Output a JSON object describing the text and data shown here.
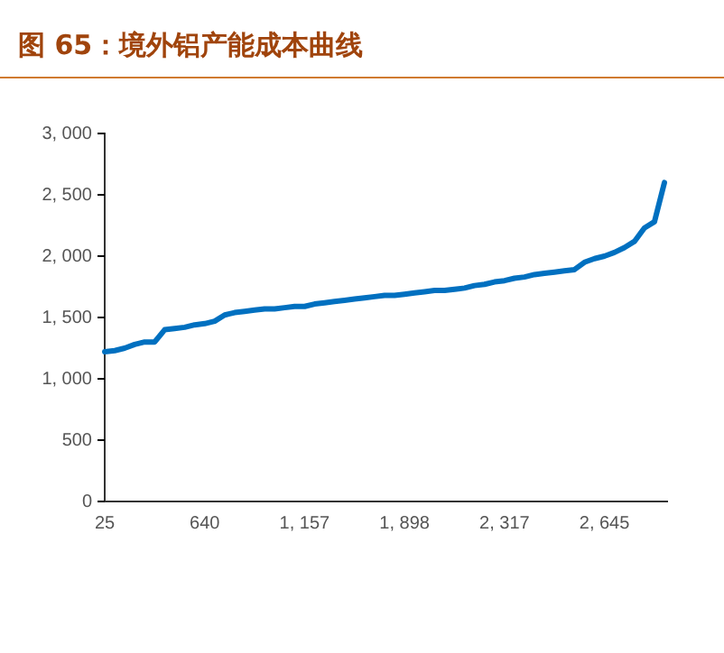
{
  "chart_data": {
    "type": "line",
    "title": "图 65：境外铝产能成本曲线",
    "categories": [
      "25",
      null,
      null,
      null,
      null,
      null,
      null,
      null,
      null,
      null,
      "640",
      null,
      null,
      null,
      null,
      null,
      null,
      null,
      null,
      null,
      "1, 157",
      null,
      null,
      null,
      null,
      null,
      null,
      null,
      null,
      null,
      "1, 898",
      null,
      null,
      null,
      null,
      null,
      null,
      null,
      null,
      null,
      "2, 317",
      null,
      null,
      null,
      null,
      null,
      null,
      null,
      null,
      null,
      "2, 645",
      null,
      null,
      null,
      null,
      null,
      null
    ],
    "series": [
      {
        "color": "#0070c0",
        "values": [
          1220,
          1230,
          1250,
          1280,
          1300,
          1300,
          1400,
          1410,
          1420,
          1440,
          1450,
          1470,
          1520,
          1540,
          1550,
          1560,
          1570,
          1570,
          1580,
          1590,
          1590,
          1610,
          1620,
          1630,
          1640,
          1650,
          1660,
          1670,
          1680,
          1680,
          1690,
          1700,
          1710,
          1720,
          1720,
          1730,
          1740,
          1760,
          1770,
          1790,
          1800,
          1820,
          1830,
          1850,
          1860,
          1870,
          1880,
          1890,
          1950,
          1980,
          2000,
          2030,
          2070,
          2120,
          2230,
          2280,
          2600
        ]
      }
    ],
    "ylim": [
      0,
      3000
    ],
    "yticks": [
      0,
      {
        "value": 500,
        "label": "500"
      },
      {
        "value": 1000,
        "label": "1, 000"
      },
      {
        "value": 1500,
        "label": "1, 500"
      },
      {
        "value": 2000,
        "label": "2, 000"
      },
      {
        "value": 2500,
        "label": "2, 500"
      },
      {
        "value": 3000,
        "label": "3, 000"
      }
    ],
    "grid": false,
    "marker": "none",
    "line_style": "solid"
  }
}
